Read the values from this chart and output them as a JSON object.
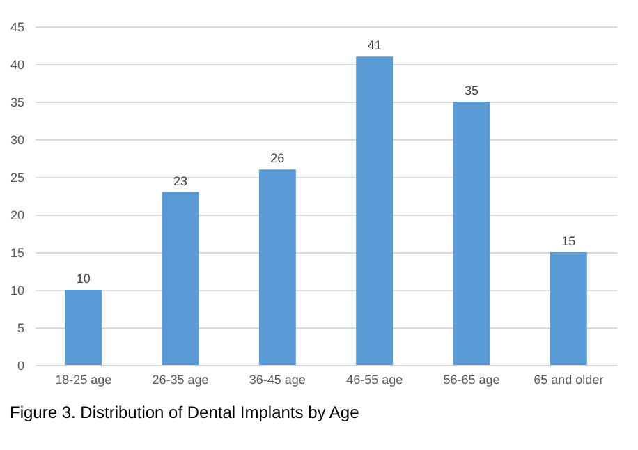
{
  "chart_data": {
    "type": "bar",
    "title": "Figure 3. Distribution of Dental Implants by Age",
    "categories": [
      "18-25 age",
      "26-35 age",
      "36-45 age",
      "46-55 age",
      "56-65 age",
      "65 and older"
    ],
    "values": [
      10,
      23,
      26,
      41,
      35,
      15
    ],
    "color": "#5b9bd5",
    "ylim": [
      0,
      45
    ],
    "yticks": [
      0,
      5,
      10,
      15,
      20,
      25,
      30,
      35,
      40,
      45
    ],
    "grid": "y",
    "data_labels": true
  }
}
